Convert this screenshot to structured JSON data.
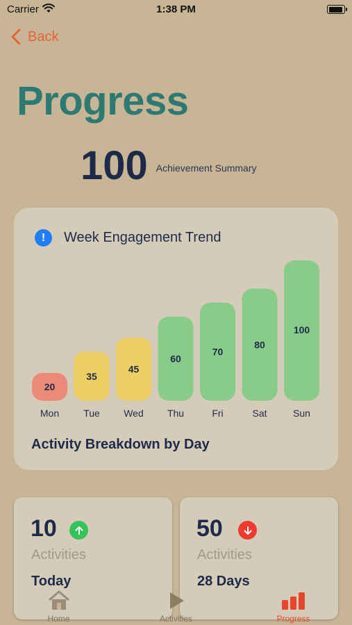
{
  "status_bar": {
    "carrier": "Carrier",
    "time": "1:38 PM"
  },
  "nav": {
    "back_label": "Back"
  },
  "page": {
    "title": "Progress"
  },
  "summary": {
    "value": "100",
    "label": "Achievement Summary"
  },
  "engagement_card": {
    "title": "Week Engagement Trend",
    "footer": "Activity Breakdown by Day"
  },
  "chart_data": {
    "type": "bar",
    "categories": [
      "Mon",
      "Tue",
      "Wed",
      "Thu",
      "Fri",
      "Sat",
      "Sun"
    ],
    "values": [
      20,
      35,
      45,
      60,
      70,
      80,
      100
    ],
    "colors": [
      "#ec8a7a",
      "#ecce63",
      "#ecce63",
      "#89cc8a",
      "#89cc8a",
      "#89cc8a",
      "#89cc8a"
    ],
    "title": "Week Engagement Trend",
    "ylim": [
      0,
      100
    ]
  },
  "stats": [
    {
      "value": "10",
      "unit": "Activities",
      "period": "Today",
      "trend": "up",
      "trend_color": "#34c25a"
    },
    {
      "value": "50",
      "unit": "Activities",
      "period": "28 Days",
      "trend": "down",
      "trend_color": "#ef3b2f"
    }
  ],
  "tabs": [
    {
      "label": "Home",
      "icon": "house-icon",
      "active": false
    },
    {
      "label": "Activities",
      "icon": "play-icon",
      "active": false
    },
    {
      "label": "Progress",
      "icon": "bar-chart-icon",
      "active": true
    }
  ],
  "colors": {
    "accent": "#e8613a",
    "title": "#2c7a72",
    "background": "#c8b596",
    "card": "#d5cbb9"
  }
}
